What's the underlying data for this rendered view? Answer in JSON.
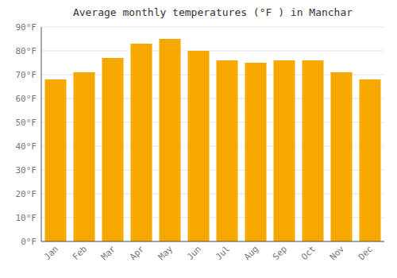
{
  "chart_data": {
    "type": "bar",
    "title": "Average monthly temperatures (°F ) in Manchar",
    "categories": [
      "Jan",
      "Feb",
      "Mar",
      "Apr",
      "May",
      "Jun",
      "Jul",
      "Aug",
      "Sep",
      "Oct",
      "Nov",
      "Dec"
    ],
    "values": [
      68,
      71,
      77,
      83,
      85,
      80,
      76,
      75,
      76,
      76,
      71,
      68
    ],
    "color": "#F5A800",
    "ylim": [
      0,
      90
    ],
    "yticks": [
      {
        "value": 0,
        "label": "0°F"
      },
      {
        "value": 10,
        "label": "10°F"
      },
      {
        "value": 20,
        "label": "20°F"
      },
      {
        "value": 30,
        "label": "30°F"
      },
      {
        "value": 40,
        "label": "40°F"
      },
      {
        "value": 50,
        "label": "50°F"
      },
      {
        "value": 60,
        "label": "60°F"
      },
      {
        "value": 70,
        "label": "70°F"
      },
      {
        "value": 80,
        "label": "80°F"
      },
      {
        "value": 90,
        "label": "90°F"
      }
    ],
    "grid": true
  }
}
